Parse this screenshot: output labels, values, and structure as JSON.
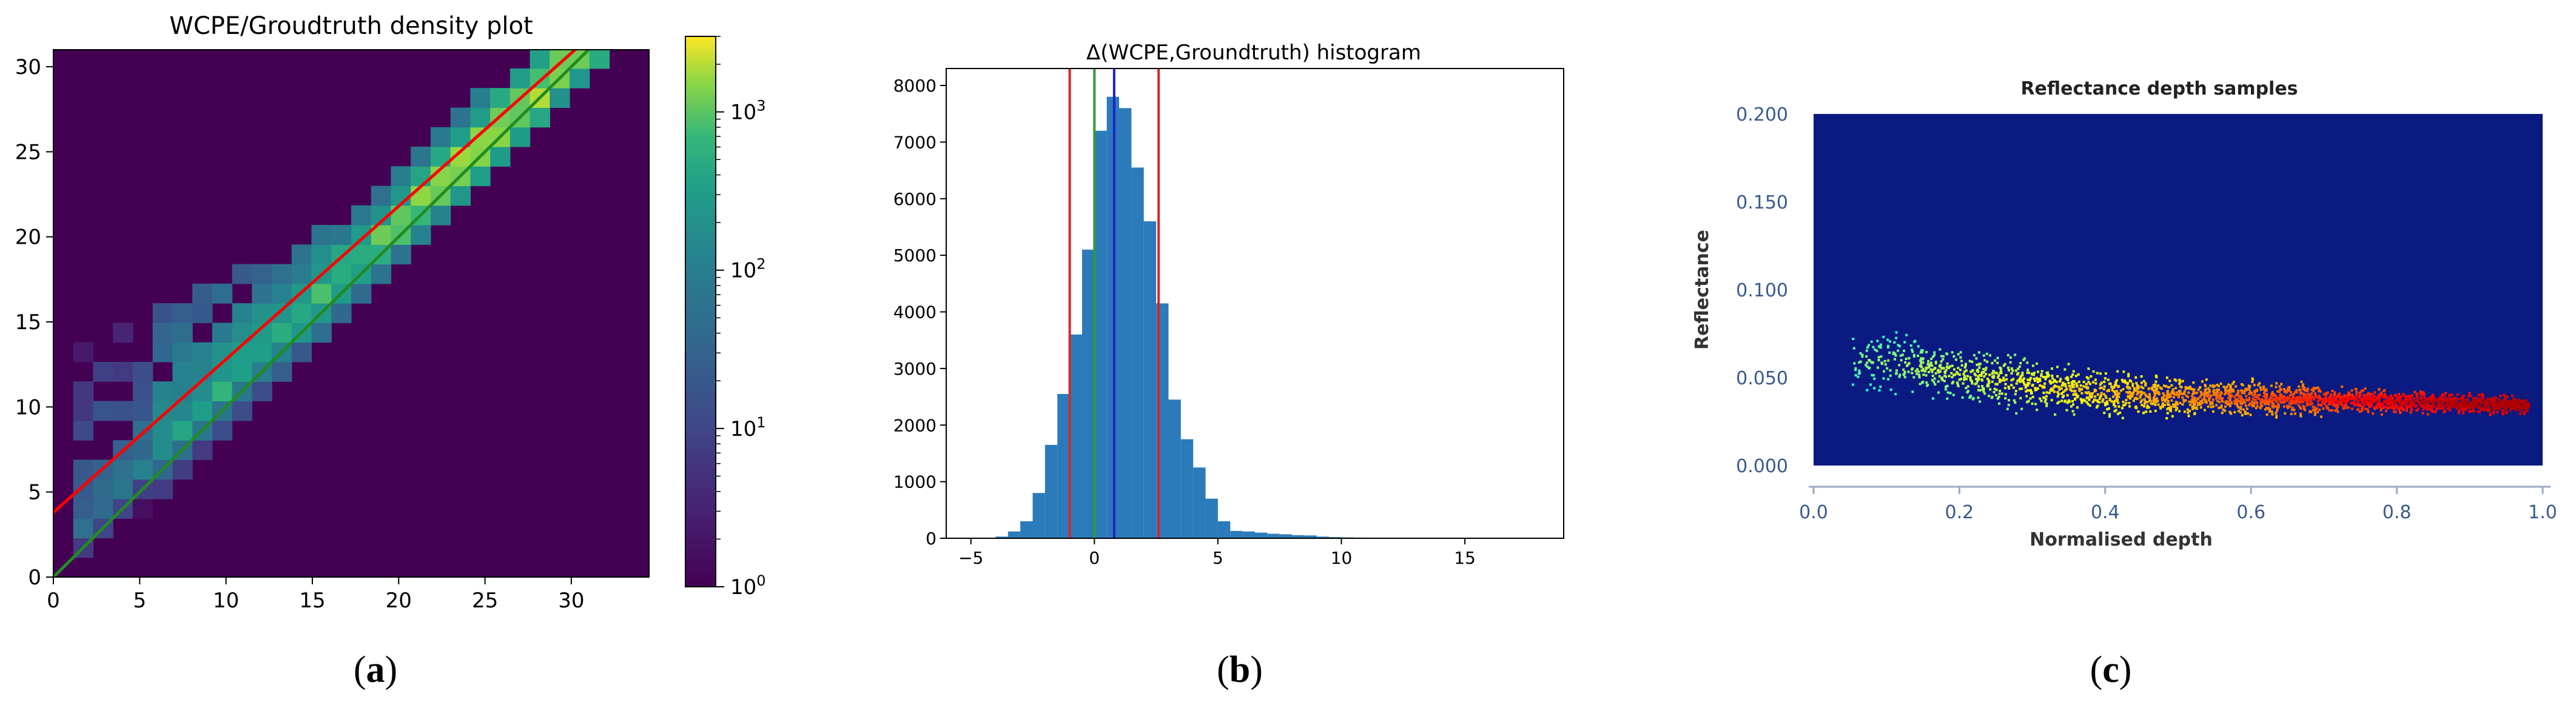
{
  "figure": {
    "captions": [
      {
        "open": "(",
        "letter": "a",
        "close": ")"
      },
      {
        "open": "(",
        "letter": "b",
        "close": ")"
      },
      {
        "open": "(",
        "letter": "c",
        "close": ")"
      }
    ]
  },
  "chart_data": [
    {
      "type": "heatmap",
      "title": "WCPE/Groudtruth density plot",
      "xlabel": "",
      "ylabel": "",
      "xlim": [
        0,
        34.5
      ],
      "ylim": [
        0,
        31
      ],
      "x_ticks": [
        0,
        5,
        10,
        15,
        20,
        25,
        30
      ],
      "y_ticks": [
        0,
        5,
        10,
        15,
        20,
        25,
        30
      ],
      "colorbar": {
        "scale": "log",
        "range": [
          1,
          3000
        ],
        "tick_labels": [
          "10^0",
          "10^1",
          "10^2",
          "10^3"
        ],
        "tick_values": [
          1,
          10,
          100,
          1000
        ],
        "colormap": "viridis"
      },
      "background_color": "#440154",
      "lines": [
        {
          "color": "#ff0000",
          "intercept": 3.8,
          "slope": 0.9
        },
        {
          "color": "#228b22",
          "intercept": 0.0,
          "slope": 1.0
        }
      ],
      "grid": false
    },
    {
      "type": "bar",
      "title": "Δ(WCPE,Groundtruth) histogram",
      "xlabel": "",
      "ylabel": "",
      "xlim": [
        -6,
        19
      ],
      "ylim": [
        0,
        8300
      ],
      "x_ticks": [
        -5,
        0,
        5,
        10,
        15
      ],
      "y_ticks": [
        0,
        1000,
        2000,
        3000,
        4000,
        5000,
        6000,
        7000,
        8000
      ],
      "bin_width": 0.5,
      "bins_start": [
        -4,
        -3.5,
        -3,
        -2.5,
        -2,
        -1.5,
        -1,
        -0.5,
        0,
        0.5,
        1,
        1.5,
        2,
        2.5,
        3,
        3.5,
        4,
        4.5,
        5,
        5.5,
        6,
        6.5,
        7,
        7.5,
        8,
        8.5,
        9,
        9.5,
        10,
        10.5,
        11,
        11.5,
        12
      ],
      "values": [
        30,
        120,
        300,
        800,
        1650,
        2550,
        3600,
        5100,
        7200,
        7800,
        7600,
        6550,
        5600,
        4150,
        2450,
        1750,
        1250,
        700,
        300,
        130,
        120,
        100,
        80,
        70,
        55,
        50,
        30,
        20,
        15,
        12,
        10,
        8,
        5
      ],
      "bar_color": "#2b7bba",
      "vertical_lines": [
        {
          "x": -1.0,
          "color": "#d62728"
        },
        {
          "x": 2.6,
          "color": "#d62728"
        },
        {
          "x": 0.0,
          "color": "#2ca02c"
        },
        {
          "x": 0.8,
          "color": "#1f1fcf"
        }
      ],
      "grid": false
    },
    {
      "type": "scatter",
      "title": "Reflectance depth samples",
      "xlabel": "Normalised depth",
      "ylabel": "Reflectance",
      "xlim": [
        0.0,
        1.0
      ],
      "ylim": [
        0.0,
        0.2
      ],
      "x_tick_labels": [
        "0.0",
        "0.2",
        "0.4",
        "0.6",
        "0.8",
        "1.0"
      ],
      "x_tick_values": [
        0.0,
        0.2,
        0.4,
        0.6,
        0.8,
        1.0
      ],
      "y_tick_labels": [
        "0.000",
        "0.050",
        "0.100",
        "0.150",
        "0.200"
      ],
      "y_tick_values": [
        0.0,
        0.05,
        0.1,
        0.15,
        0.2
      ],
      "background_color": "#0a1a80",
      "trend": {
        "x": [
          0.05,
          0.2,
          0.3,
          0.4,
          0.5,
          0.6,
          0.7,
          0.8,
          0.9,
          0.97
        ],
        "y": [
          0.062,
          0.053,
          0.046,
          0.042,
          0.04,
          0.039,
          0.038,
          0.037,
          0.036,
          0.035
        ]
      },
      "density_colormap": "jet",
      "grid": false
    }
  ]
}
